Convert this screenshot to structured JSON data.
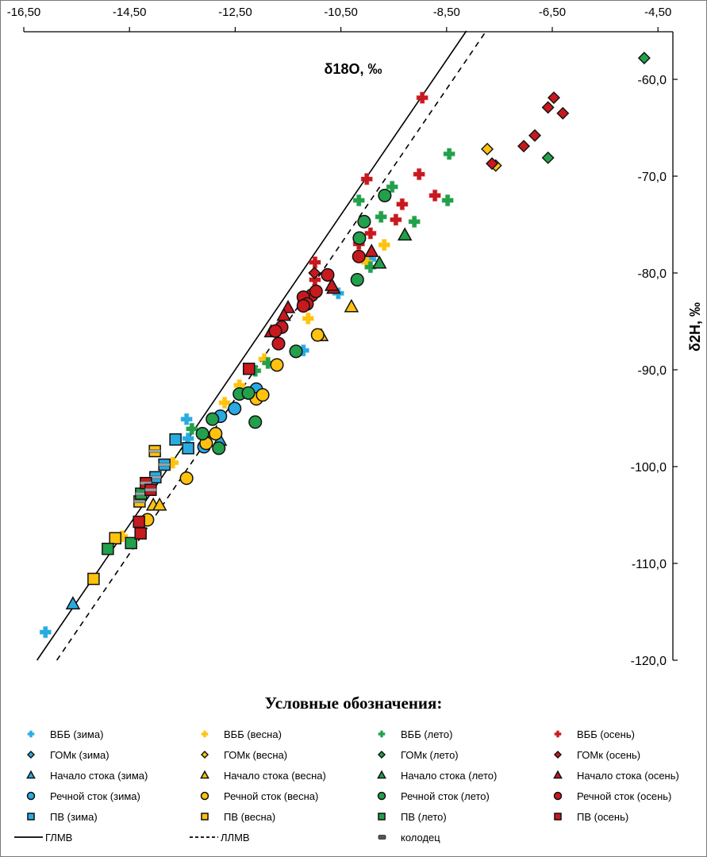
{
  "chart_data": {
    "type": "scatter",
    "title": "",
    "xlabel": "δ18O, ‰",
    "ylabel": "δ2H, ‰",
    "xlim": [
      -16.5,
      -3.8
    ],
    "ylim": [
      -120,
      -55
    ],
    "x_ticks": [
      "-16,50",
      "-14,50",
      "-12,50",
      "-10,50",
      "-8,50",
      "-6,50",
      "-4,50"
    ],
    "x_tick_values": [
      -16.5,
      -14.5,
      -12.5,
      -10.5,
      -8.5,
      -6.5,
      -4.5
    ],
    "y_ticks": [
      "-60,0",
      "-70,0",
      "-80,0",
      "-90,0",
      "-100,0",
      "-110,0",
      "-120,0"
    ],
    "y_tick_values": [
      -60,
      -70,
      -80,
      -90,
      -100,
      -110,
      -120
    ],
    "lines": [
      {
        "name": "ГЛМВ",
        "slope": 8,
        "intercept": 10,
        "style": "solid"
      },
      {
        "name": "ЛЛМВ",
        "slope": 8,
        "intercept": 7,
        "style": "dashed"
      }
    ],
    "series": [
      {
        "name": "ВББ (зима)",
        "color": "#29ABE2",
        "marker": "plus",
        "points": [
          [
            -16.09,
            -117.1
          ],
          [
            -13.42,
            -95.1
          ],
          [
            -13.39,
            -97.1
          ],
          [
            -11.21,
            -88.0
          ],
          [
            -10.55,
            -82.1
          ],
          [
            -9.94,
            -78.6
          ]
        ]
      },
      {
        "name": "ВББ (весна)",
        "color": "#FFC20E",
        "marker": "plus",
        "points": [
          [
            -12.7,
            -93.4
          ],
          [
            -13.68,
            -99.6
          ],
          [
            -14.64,
            -107.2
          ],
          [
            -12.42,
            -91.6
          ],
          [
            -11.95,
            -88.9
          ],
          [
            -11.12,
            -84.7
          ],
          [
            -9.68,
            -77.1
          ],
          [
            -10.01,
            -78.9
          ]
        ]
      },
      {
        "name": "ВББ (лето)",
        "color": "#22A04B",
        "marker": "plus",
        "points": [
          [
            -13.32,
            -96.1
          ],
          [
            -11.88,
            -89.3
          ],
          [
            -12.12,
            -90.1
          ],
          [
            -10.16,
            -72.5
          ],
          [
            -9.53,
            -71.1
          ],
          [
            -9.74,
            -74.2
          ],
          [
            -9.11,
            -74.7
          ],
          [
            -8.45,
            -67.7
          ],
          [
            -8.48,
            -72.5
          ],
          [
            -9.94,
            -79.4
          ]
        ]
      },
      {
        "name": "ВББ (осень)",
        "color": "#C8191E",
        "marker": "plus",
        "points": [
          [
            -8.96,
            -61.9
          ],
          [
            -10.01,
            -70.3
          ],
          [
            -9.02,
            -69.8
          ],
          [
            -8.72,
            -72.0
          ],
          [
            -9.34,
            -72.9
          ],
          [
            -9.46,
            -74.5
          ],
          [
            -9.94,
            -75.9
          ],
          [
            -10.16,
            -77.0
          ],
          [
            -10.99,
            -78.9
          ],
          [
            -10.99,
            -80.7
          ]
        ]
      },
      {
        "name": "ГОМк (зима)",
        "color": "#29ABE2",
        "marker": "diamond",
        "points": []
      },
      {
        "name": "ГОМк (весна)",
        "color": "#FFC20E",
        "marker": "diamond",
        "points": [
          [
            -7.73,
            -67.2
          ],
          [
            -7.57,
            -68.9
          ]
        ]
      },
      {
        "name": "ГОМк (лето)",
        "color": "#22A04B",
        "marker": "diamond",
        "points": [
          [
            -4.76,
            -57.8
          ],
          [
            -6.58,
            -68.1
          ]
        ]
      },
      {
        "name": "ГОМк (осень)",
        "color": "#C8191E",
        "marker": "diamond",
        "points": [
          [
            -11.0,
            -80.0
          ],
          [
            -6.47,
            -61.9
          ],
          [
            -6.58,
            -62.9
          ],
          [
            -6.3,
            -63.5
          ],
          [
            -6.83,
            -65.8
          ],
          [
            -7.04,
            -66.9
          ],
          [
            -7.64,
            -68.7
          ]
        ]
      },
      {
        "name": "Начало стока (зима)",
        "color": "#29ABE2",
        "marker": "triangle",
        "points": [
          [
            -15.57,
            -114.2
          ],
          [
            -12.79,
            -97.3
          ]
        ]
      },
      {
        "name": "Начало стока (весна)",
        "color": "#FFC20E",
        "marker": "triangle",
        "points": [
          [
            -14.05,
            -104.0
          ],
          [
            -13.93,
            -104.0
          ],
          [
            -10.3,
            -83.5
          ],
          [
            -10.87,
            -86.5
          ]
        ]
      },
      {
        "name": "Начало стока (лето)",
        "color": "#22A04B",
        "marker": "triangle",
        "points": [
          [
            -9.29,
            -76.1
          ],
          [
            -9.77,
            -79.0
          ]
        ]
      },
      {
        "name": "Начало стока (осень)",
        "color": "#C8191E",
        "marker": "triangle",
        "points": [
          [
            -9.92,
            -77.8
          ],
          [
            -10.64,
            -81.6
          ],
          [
            -11.5,
            -83.6
          ],
          [
            -11.58,
            -84.4
          ],
          [
            -11.82,
            -86.1
          ],
          [
            -10.67,
            -81.3
          ]
        ]
      },
      {
        "name": "Речной сток (зима)",
        "color": "#29ABE2",
        "marker": "circle",
        "points": [
          [
            -12.1,
            -92.0
          ],
          [
            -12.51,
            -94.0
          ],
          [
            -12.78,
            -94.8
          ],
          [
            -13.09,
            -97.95
          ]
        ]
      },
      {
        "name": "Речной сток (весна)",
        "color": "#FFC20E",
        "marker": "circle",
        "points": [
          [
            -13.42,
            -101.2
          ],
          [
            -14.16,
            -105.5
          ],
          [
            -11.71,
            -89.5
          ],
          [
            -12.1,
            -93.0
          ],
          [
            -11.98,
            -92.6
          ],
          [
            -12.87,
            -96.6
          ],
          [
            -13.05,
            -97.6
          ],
          [
            -10.94,
            -86.4
          ]
        ]
      },
      {
        "name": "Речной сток (лето)",
        "color": "#22A04B",
        "marker": "circle",
        "points": [
          [
            -9.67,
            -72.0
          ],
          [
            -10.06,
            -74.7
          ],
          [
            -10.15,
            -76.4
          ],
          [
            -10.19,
            -80.7
          ],
          [
            -11.35,
            -88.1
          ],
          [
            -12.42,
            -92.5
          ],
          [
            -12.25,
            -92.4
          ],
          [
            -12.93,
            -95.1
          ],
          [
            -12.12,
            -95.4
          ],
          [
            -13.12,
            -96.6
          ],
          [
            -12.81,
            -98.1
          ]
        ]
      },
      {
        "name": "Речной сток (осень)",
        "color": "#C8191E",
        "marker": "circle",
        "points": [
          [
            -10.16,
            -78.3
          ],
          [
            -10.75,
            -80.2
          ],
          [
            -11.05,
            -82.3
          ],
          [
            -11.2,
            -83.2
          ],
          [
            -10.97,
            -81.9
          ],
          [
            -11.21,
            -82.5
          ],
          [
            -11.14,
            -83.2
          ],
          [
            -11.21,
            -83.4
          ],
          [
            -11.62,
            -85.6
          ],
          [
            -11.74,
            -86.0
          ],
          [
            -11.68,
            -87.3
          ]
        ]
      },
      {
        "name": "ПВ (зима)",
        "color": "#29ABE2",
        "marker": "square",
        "points": [
          [
            -13.63,
            -97.2,
            0
          ],
          [
            -13.39,
            -98.1,
            0
          ],
          [
            -13.84,
            -99.8,
            1
          ],
          [
            -14.01,
            -101.1,
            1
          ]
        ]
      },
      {
        "name": "ПВ (весна)",
        "color": "#FFC20E",
        "marker": "square",
        "points": [
          [
            -14.02,
            -98.4,
            1
          ],
          [
            -14.31,
            -103.6,
            1
          ],
          [
            -14.77,
            -107.4,
            0
          ],
          [
            -15.18,
            -111.6,
            0
          ]
        ]
      },
      {
        "name": "ПВ (лето)",
        "color": "#22A04B",
        "marker": "square",
        "points": [
          [
            -14.28,
            -102.8,
            1
          ],
          [
            -14.91,
            -108.5,
            0
          ],
          [
            -14.47,
            -107.9,
            0
          ]
        ]
      },
      {
        "name": "ПВ (осень)",
        "color": "#C8191E",
        "marker": "square",
        "points": [
          [
            -14.19,
            -101.7,
            1
          ],
          [
            -14.1,
            -102.4,
            1
          ],
          [
            -14.32,
            -105.7,
            0
          ],
          [
            -14.29,
            -106.9,
            0
          ],
          [
            -12.24,
            -89.9,
            0
          ]
        ]
      }
    ],
    "legend_title": "Условные обозначения:",
    "legend_placement": "bottom",
    "legend_extra": [
      {
        "name": "ГЛМВ",
        "marker": "solid-line"
      },
      {
        "name": "ЛЛМВ",
        "marker": "dashed-line"
      },
      {
        "name": "колодец",
        "marker": "well"
      }
    ]
  }
}
